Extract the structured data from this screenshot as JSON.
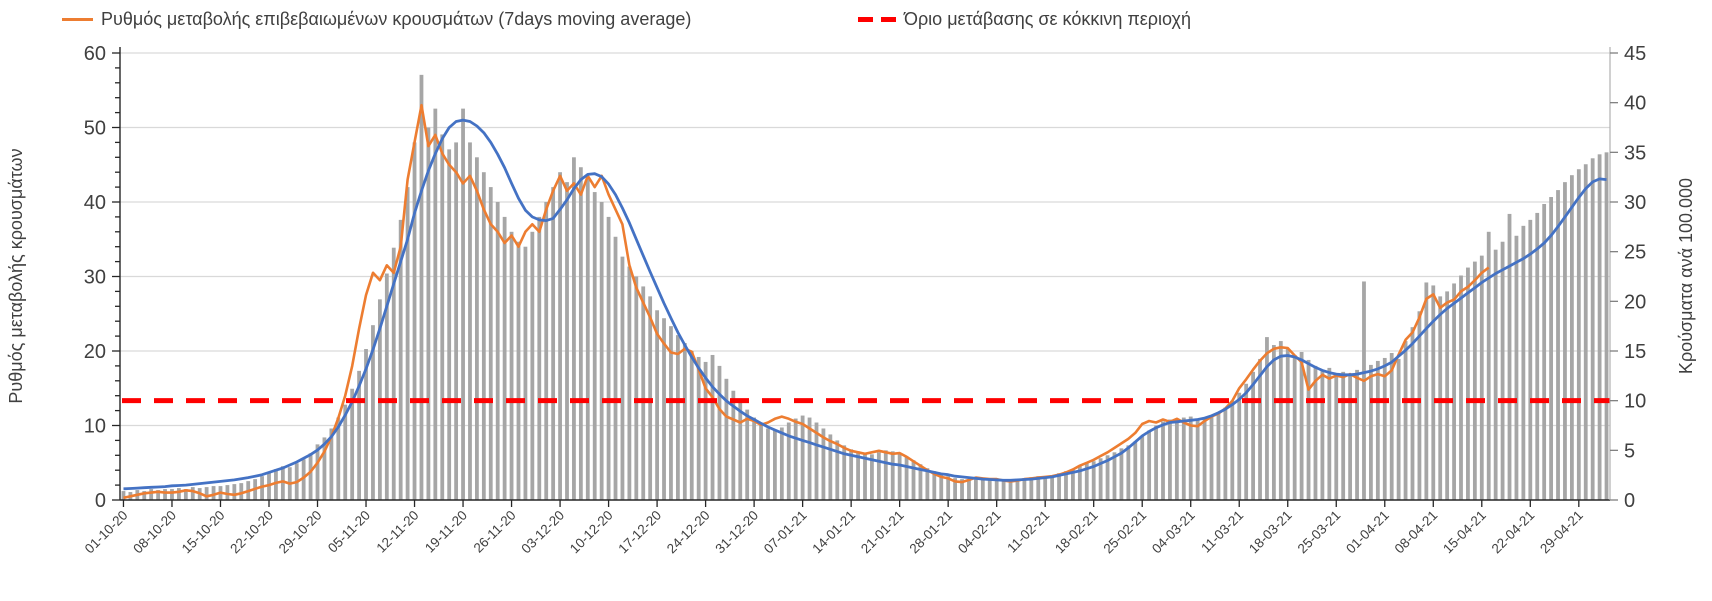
{
  "chart_data": {
    "type": "bar",
    "combo": "bars + two lines + dashed threshold",
    "title": "",
    "legend": [
      {
        "label": "Ρυθμός μεταβολής επιβεβαιωμένων κρουσμάτων (7days moving average)",
        "marker": "solid-line",
        "color": "#ed7d31"
      },
      {
        "label": "Όριο μετάβασης σε κόκκινη περιοχή",
        "marker": "dashed-line",
        "color": "#fe0000"
      }
    ],
    "left_axis": {
      "label": "Ρυθμός μεταβολής κρουσμάτων",
      "min": 0,
      "max": 60,
      "major_step": 10,
      "minor_step": 2
    },
    "right_axis": {
      "label": "Κρούσματα ανά 100.000",
      "min": 0,
      "max": 45,
      "major_step": 5
    },
    "x_axis": {
      "unit": "day",
      "tick_every_days": 7,
      "labels": [
        "01-10-20",
        "08-10-20",
        "15-10-20",
        "22-10-20",
        "29-10-20",
        "05-11-20",
        "12-11-20",
        "19-11-20",
        "26-11-20",
        "03-12-20",
        "10-12-20",
        "17-12-20",
        "24-12-20",
        "31-12-20",
        "07-01-21",
        "14-01-21",
        "21-01-21",
        "28-01-21",
        "04-02-21",
        "11-02-21",
        "18-02-21",
        "25-02-21",
        "04-03-21",
        "11-03-21",
        "18-03-21",
        "25-03-21",
        "01-04-21",
        "08-04-21",
        "15-04-21",
        "22-04-21",
        "29-04-21"
      ]
    },
    "threshold": {
      "axis": "right",
      "value": 10,
      "value_left_axis": 13.3,
      "color": "#fe0000"
    },
    "colors": {
      "bars": "#a6a6a6",
      "ma7_line": "#ed7d31",
      "trend_line": "#4472c4",
      "grid": "#d9d9d9",
      "axis": "#262626",
      "text": "#404040"
    },
    "series": [
      {
        "id": "bars",
        "type": "bar",
        "axis": "right",
        "color": "#a6a6a6",
        "values": [
          0.9,
          0.8,
          1.0,
          0.9,
          1.1,
          1.0,
          1.1,
          1.1,
          1.2,
          1.1,
          1.3,
          1.2,
          1.3,
          1.4,
          1.4,
          1.5,
          1.6,
          1.7,
          1.9,
          2.1,
          2.4,
          2.8,
          3.1,
          3.4,
          3.3,
          3.7,
          4.1,
          4.7,
          5.6,
          6.3,
          7.2,
          8.3,
          9.6,
          11.2,
          13.0,
          15.2,
          17.6,
          20.2,
          22.8,
          25.4,
          28.2,
          31.5,
          36.0,
          42.8,
          37.5,
          39.4,
          36.8,
          35.3,
          36.0,
          39.4,
          36.0,
          34.5,
          33.0,
          31.5,
          30.0,
          28.5,
          27.0,
          26.0,
          25.5,
          27.0,
          28.5,
          30.0,
          31.5,
          33.0,
          32.0,
          34.5,
          33.5,
          32.5,
          31.0,
          30.0,
          28.5,
          26.5,
          24.5,
          23.5,
          22.5,
          21.5,
          20.5,
          19.1,
          18.3,
          17.5,
          16.6,
          15.8,
          15.0,
          14.4,
          13.9,
          14.6,
          13.5,
          12.2,
          11.0,
          10.0,
          9.1,
          8.3,
          7.8,
          7.2,
          7.0,
          7.3,
          7.8,
          8.2,
          8.5,
          8.3,
          7.8,
          7.2,
          6.6,
          6.0,
          5.5,
          5.1,
          4.9,
          4.7,
          4.6,
          4.8,
          5.0,
          4.9,
          4.7,
          4.4,
          4.0,
          3.6,
          3.2,
          2.9,
          2.6,
          2.4,
          2.2,
          2.1,
          2.0,
          2.1,
          2.2,
          2.1,
          2.0,
          1.9,
          2.0,
          2.1,
          2.2,
          2.3,
          2.4,
          2.4,
          2.5,
          2.7,
          2.9,
          3.1,
          3.4,
          3.7,
          3.9,
          4.2,
          4.5,
          4.8,
          5.2,
          5.5,
          5.9,
          6.4,
          7.0,
          7.5,
          7.9,
          8.1,
          8.2,
          8.3,
          8.4,
          8.2,
          8.3,
          8.5,
          8.8,
          9.3,
          10.0,
          10.8,
          11.7,
          12.9,
          14.2,
          16.4,
          15.6,
          16.0,
          15.2,
          14.6,
          14.9,
          14.1,
          13.5,
          13.0,
          13.3,
          12.7,
          12.9,
          12.6,
          13.1,
          22.0,
          13.6,
          14.0,
          14.3,
          14.8,
          14.2,
          16.0,
          17.4,
          19.0,
          21.9,
          21.6,
          20.5,
          21.0,
          21.8,
          22.6,
          23.4,
          24.0,
          24.6,
          27.0,
          25.2,
          26.0,
          28.8,
          26.6,
          27.6,
          28.2,
          28.9,
          29.8,
          30.5,
          31.2,
          32.0,
          32.7,
          33.3,
          33.8,
          34.4,
          34.8,
          35.0
        ]
      },
      {
        "id": "ma7_line",
        "type": "line",
        "axis": "left",
        "color": "#ed7d31",
        "values": [
          0.3,
          0.5,
          0.7,
          0.9,
          1.0,
          1.1,
          1.0,
          1.0,
          1.1,
          1.3,
          1.2,
          0.9,
          0.5,
          0.7,
          1.0,
          0.8,
          0.7,
          0.9,
          1.2,
          1.5,
          1.8,
          2.0,
          2.3,
          2.5,
          2.2,
          2.4,
          3.0,
          3.8,
          5.0,
          6.5,
          8.5,
          11.0,
          14.0,
          18.0,
          23.0,
          27.5,
          30.5,
          29.5,
          31.5,
          30.5,
          34.0,
          43.0,
          48.0,
          53.0,
          47.5,
          49.0,
          46.5,
          45.0,
          44.0,
          42.5,
          43.5,
          41.5,
          39.0,
          37.0,
          36.0,
          34.5,
          35.5,
          34.0,
          36.0,
          37.0,
          36.0,
          39.0,
          41.5,
          43.5,
          41.5,
          42.5,
          41.0,
          43.5,
          42.0,
          43.5,
          41.0,
          39.0,
          37.0,
          31.5,
          28.5,
          26.5,
          24.5,
          22.3,
          21.0,
          19.8,
          19.6,
          20.3,
          19.9,
          17.5,
          15.0,
          13.8,
          12.2,
          11.2,
          10.8,
          10.4,
          10.9,
          10.6,
          10.1,
          10.4,
          10.9,
          11.2,
          10.9,
          10.5,
          10.2,
          9.6,
          9.0,
          8.4,
          7.9,
          7.5,
          7.0,
          6.6,
          6.4,
          6.2,
          6.4,
          6.6,
          6.4,
          6.2,
          6.3,
          5.8,
          5.2,
          4.6,
          4.0,
          3.5,
          3.1,
          2.9,
          2.5,
          2.4,
          2.7,
          3.0,
          2.9,
          2.8,
          2.8,
          2.6,
          2.5,
          2.6,
          2.8,
          2.9,
          3.0,
          3.1,
          3.2,
          3.4,
          3.7,
          4.1,
          4.6,
          5.0,
          5.4,
          5.9,
          6.4,
          7.0,
          7.6,
          8.2,
          9.0,
          10.2,
          10.6,
          10.4,
          10.8,
          10.5,
          10.9,
          10.4,
          10.0,
          9.9,
          10.6,
          11.2,
          11.6,
          12.3,
          13.3,
          15.0,
          16.2,
          17.5,
          18.7,
          19.7,
          20.3,
          20.5,
          20.4,
          19.4,
          18.5,
          14.8,
          16.0,
          16.8,
          16.3,
          16.7,
          16.5,
          16.9,
          16.4,
          16.0,
          16.6,
          16.9,
          16.6,
          17.4,
          19.5,
          21.5,
          22.5,
          24.5,
          27.0,
          27.6,
          25.8,
          26.5,
          26.9,
          28.0,
          28.6,
          29.5,
          30.5,
          31.2
        ]
      },
      {
        "id": "trend_line",
        "type": "line",
        "axis": "left",
        "color": "#4472c4",
        "values": [
          1.5,
          1.55,
          1.6,
          1.65,
          1.7,
          1.75,
          1.8,
          1.9,
          1.95,
          2.0,
          2.1,
          2.2,
          2.3,
          2.4,
          2.5,
          2.6,
          2.7,
          2.85,
          3.0,
          3.2,
          3.4,
          3.7,
          4.0,
          4.3,
          4.7,
          5.1,
          5.6,
          6.1,
          6.7,
          7.5,
          8.5,
          9.8,
          11.4,
          13.2,
          15.3,
          17.6,
          20.2,
          23.0,
          26.0,
          29.0,
          32.0,
          35.0,
          38.5,
          41.5,
          44.2,
          46.5,
          48.5,
          50.0,
          50.8,
          51.0,
          50.8,
          50.2,
          49.3,
          48.0,
          46.4,
          44.6,
          42.5,
          40.5,
          38.9,
          38.0,
          37.6,
          37.5,
          37.8,
          39.0,
          40.3,
          41.8,
          43.0,
          43.7,
          43.8,
          43.4,
          42.4,
          41.0,
          39.2,
          37.2,
          35.0,
          32.8,
          30.6,
          28.5,
          26.4,
          24.4,
          22.5,
          20.8,
          19.2,
          17.7,
          16.4,
          15.2,
          14.2,
          13.3,
          12.6,
          11.9,
          11.3,
          10.8,
          10.3,
          9.8,
          9.4,
          9.0,
          8.6,
          8.3,
          8.0,
          7.7,
          7.4,
          7.1,
          6.8,
          6.5,
          6.2,
          6.0,
          5.8,
          5.6,
          5.4,
          5.2,
          5.0,
          4.8,
          4.7,
          4.5,
          4.3,
          4.1,
          3.9,
          3.7,
          3.5,
          3.4,
          3.2,
          3.1,
          3.0,
          2.9,
          2.8,
          2.75,
          2.7,
          2.65,
          2.65,
          2.7,
          2.75,
          2.8,
          2.9,
          3.0,
          3.1,
          3.3,
          3.5,
          3.7,
          3.9,
          4.2,
          4.5,
          4.9,
          5.3,
          5.8,
          6.3,
          7.0,
          7.8,
          8.6,
          9.2,
          9.7,
          10.1,
          10.4,
          10.5,
          10.6,
          10.7,
          10.8,
          11.0,
          11.3,
          11.7,
          12.2,
          12.8,
          13.5,
          14.4,
          15.5,
          16.7,
          17.9,
          18.8,
          19.3,
          19.4,
          19.2,
          18.8,
          18.3,
          17.8,
          17.4,
          17.1,
          16.9,
          16.8,
          16.8,
          16.9,
          17.1,
          17.3,
          17.6,
          18.0,
          18.5,
          19.3,
          20.1,
          21.0,
          22.0,
          23.0,
          24.0,
          24.9,
          25.7,
          26.4,
          27.1,
          27.8,
          28.5,
          29.2,
          29.8,
          30.4,
          30.9,
          31.4,
          31.9,
          32.4,
          33.0,
          33.7,
          34.5,
          35.5,
          36.7,
          38.0,
          39.3,
          40.6,
          41.8,
          42.7,
          43.1,
          43.0
        ]
      }
    ]
  }
}
